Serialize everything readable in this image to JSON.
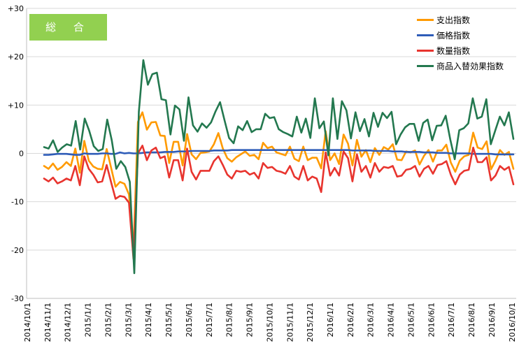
{
  "badge": {
    "label": "総 合",
    "color": "#92d050"
  },
  "legend": [
    {
      "name": "支出指数",
      "color": "#ff9a00"
    },
    {
      "name": "価格指数",
      "color": "#2e5cb8"
    },
    {
      "name": "数量指数",
      "color": "#e8342e"
    },
    {
      "name": "商品入替効果指数",
      "color": "#23784f"
    }
  ],
  "chart_data": {
    "type": "line",
    "ylim": [
      -30,
      30
    ],
    "yticks": [
      "+30",
      "+20",
      "+10",
      "0",
      "-10",
      "-20",
      "-30"
    ],
    "x_labels": [
      "2014/10/1",
      "2014/11/1",
      "2014/12/1",
      "2015/1/1",
      "2015/2/1",
      "2015/3/1",
      "2015/4/1",
      "2015/5/1",
      "2015/6/1",
      "2015/7/1",
      "2015/8/1",
      "2015/9/1",
      "2015/10/1",
      "2015/11/1",
      "2015/12/1",
      "2016/1/1",
      "2016/2/1",
      "2016/3/1",
      "2016/4/1",
      "2016/5/1",
      "2016/6/1",
      "2016/7/1",
      "2016/8/1",
      "2016/9/1",
      "2016/10/1"
    ],
    "grid": "horizontal",
    "legend_position": "top-right",
    "series": [
      {
        "name": "支出指数",
        "color": "#ff9a00",
        "values": [
          -2.6,
          -3.2,
          -2.1,
          -3.4,
          -2.8,
          -1.8,
          -2.6,
          1.0,
          -4.0,
          2.6,
          -1.5,
          -2.7,
          -3.2,
          -3.3,
          0.9,
          -3.0,
          -6.9,
          -5.9,
          -6.3,
          -8.5,
          -20.0,
          6.5,
          8.5,
          4.9,
          6.4,
          6.5,
          3.7,
          3.6,
          -2.0,
          2.4,
          2.4,
          -2.5,
          4.0,
          -0.2,
          -1.2,
          0.1,
          0.2,
          0.4,
          1.9,
          4.2,
          1.0,
          -1.0,
          -1.7,
          -0.8,
          -0.2,
          0.4,
          -0.5,
          -0.3,
          -1.2,
          2.2,
          1.1,
          1.4,
          0.2,
          -0.1,
          -0.4,
          1.4,
          -1.1,
          -1.6,
          1.4,
          -1.4,
          -0.9,
          -0.9,
          -3.1,
          4.6,
          -1.4,
          0.0,
          -2.2,
          3.9,
          2.0,
          -2.5,
          2.8,
          -0.7,
          0.7,
          -1.8,
          1.1,
          -0.3,
          1.3,
          0.8,
          1.9,
          -1.3,
          -1.4,
          0.4,
          0.2,
          0.6,
          -2.3,
          -0.5,
          0.7,
          -1.7,
          0.6,
          0.6,
          1.8,
          -1.9,
          -3.8,
          -1.5,
          -0.6,
          -0.3,
          4.3,
          1.2,
          0.9,
          2.5,
          -3.3,
          -1.5,
          0.7,
          -0.3,
          0.3,
          -3.2
        ]
      },
      {
        "name": "価格指数",
        "color": "#2e5cb8",
        "values": [
          -0.3,
          -0.3,
          -0.2,
          -0.1,
          -0.1,
          -0.1,
          -0.2,
          -0.3,
          -0.3,
          0.0,
          -0.1,
          -0.1,
          -0.1,
          0.0,
          0.0,
          -0.1,
          -0.1,
          0.2,
          0.0,
          0.1,
          0.0,
          0.0,
          0.1,
          0.2,
          0.2,
          0.2,
          0.2,
          0.3,
          0.3,
          0.3,
          0.4,
          0.4,
          0.4,
          0.5,
          0.5,
          0.5,
          0.5,
          0.5,
          0.6,
          0.6,
          0.6,
          0.6,
          0.7,
          0.7,
          0.7,
          0.7,
          0.7,
          0.7,
          0.7,
          0.7,
          0.7,
          0.7,
          0.7,
          0.7,
          0.7,
          0.7,
          0.7,
          0.7,
          0.7,
          0.7,
          0.7,
          0.7,
          0.7,
          0.7,
          0.7,
          0.7,
          0.7,
          0.7,
          0.7,
          0.6,
          0.6,
          0.6,
          0.6,
          0.6,
          0.5,
          0.5,
          0.5,
          0.5,
          0.4,
          0.4,
          0.4,
          0.3,
          0.3,
          0.3,
          0.3,
          0.2,
          0.2,
          0.2,
          0.1,
          0.1,
          0.1,
          0.0,
          0.0,
          0.0,
          0.0,
          0.0,
          -0.1,
          -0.1,
          -0.1,
          -0.1,
          -0.1,
          -0.2,
          -0.2,
          -0.2,
          -0.2,
          -0.2
        ]
      },
      {
        "name": "数量指数",
        "color": "#e8342e",
        "values": [
          -5.2,
          -5.8,
          -5.0,
          -6.2,
          -5.8,
          -5.2,
          -5.6,
          -2.6,
          -6.6,
          -0.6,
          -3.2,
          -4.4,
          -6.0,
          -5.8,
          -2.4,
          -6.0,
          -9.4,
          -8.8,
          -9.0,
          -10.2,
          -21.8,
          0.0,
          1.6,
          -1.4,
          0.6,
          1.2,
          -1.0,
          -0.6,
          -5.0,
          -1.4,
          -1.4,
          -5.6,
          1.0,
          -3.8,
          -5.4,
          -3.6,
          -3.6,
          -3.6,
          -1.6,
          -0.6,
          -2.4,
          -4.4,
          -5.2,
          -3.6,
          -3.8,
          -3.6,
          -4.4,
          -4.0,
          -5.2,
          -2.0,
          -3.0,
          -2.8,
          -3.6,
          -3.8,
          -4.2,
          -2.6,
          -4.8,
          -5.4,
          -2.6,
          -5.6,
          -4.8,
          -5.2,
          -8.0,
          0.2,
          -4.6,
          -3.0,
          -4.6,
          0.4,
          -1.0,
          -5.8,
          -0.2,
          -3.8,
          -2.6,
          -5.0,
          -2.0,
          -3.8,
          -2.8,
          -3.0,
          -2.6,
          -4.8,
          -4.6,
          -3.4,
          -3.2,
          -2.6,
          -4.8,
          -3.2,
          -2.6,
          -4.2,
          -2.4,
          -2.2,
          -1.6,
          -4.4,
          -6.4,
          -4.4,
          -3.6,
          -3.4,
          1.2,
          -1.8,
          -1.8,
          -0.8,
          -5.6,
          -4.6,
          -2.6,
          -3.4,
          -2.8,
          -6.4
        ]
      },
      {
        "name": "商品入替効果指数",
        "color": "#23784f",
        "values": [
          1.3,
          1.0,
          2.7,
          0.3,
          1.2,
          1.9,
          1.6,
          6.7,
          0.8,
          7.2,
          4.7,
          1.5,
          0.5,
          0.9,
          7.0,
          2.7,
          -3.2,
          -1.6,
          -2.8,
          -5.9,
          -24.8,
          8.6,
          19.3,
          14.2,
          16.4,
          16.7,
          11.2,
          11.0,
          3.9,
          9.9,
          9.1,
          2.6,
          11.6,
          5.8,
          4.5,
          6.2,
          5.3,
          6.4,
          8.7,
          10.6,
          6.8,
          3.2,
          2.1,
          5.6,
          4.8,
          6.7,
          4.4,
          5.0,
          5.0,
          8.2,
          7.3,
          7.5,
          5.0,
          4.4,
          4.0,
          3.5,
          7.6,
          4.3,
          7.2,
          3.2,
          11.4,
          5.2,
          6.6,
          -0.4,
          11.4,
          3.0,
          10.8,
          8.9,
          3.1,
          8.5,
          4.6,
          7.1,
          3.5,
          8.4,
          5.5,
          8.4,
          7.3,
          8.6,
          1.9,
          3.9,
          5.4,
          6.1,
          6.1,
          2.6,
          6.3,
          7.0,
          2.7,
          5.7,
          5.8,
          7.8,
          2.9,
          -1.2,
          4.8,
          5.2,
          6.2,
          11.4,
          7.2,
          7.6,
          11.2,
          1.9,
          4.8,
          7.6,
          5.8,
          8.5,
          3.0
        ]
      }
    ]
  }
}
